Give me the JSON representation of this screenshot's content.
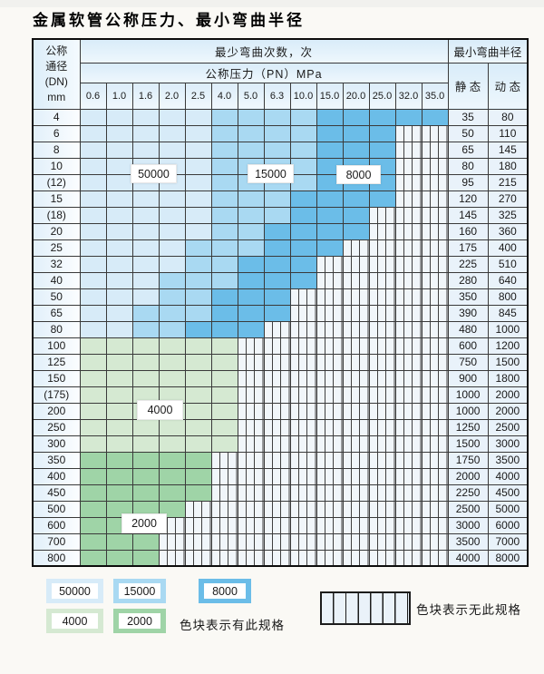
{
  "title": "金属软管公称压力、最小弯曲半径",
  "table": {
    "corner_header": {
      "line1": "公称",
      "line2": "通径",
      "line3": "(DN)",
      "line4": "mm"
    },
    "bend_cycles_header": "最少弯曲次数，次",
    "bend_radius_header": "最小弯曲半径",
    "pressure_header": "公称压力（PN）MPa",
    "pressure_columns": [
      "0.6",
      "1.0",
      "1.6",
      "2.0",
      "2.5",
      "4.0",
      "5.0",
      "6.3",
      "10.0",
      "15.0",
      "20.0",
      "25.0",
      "32.0",
      "35.0"
    ],
    "static_header": "静 态",
    "dynamic_header": "动 态",
    "cell_codes": {
      "A": "50000",
      "B": "15000",
      "C": "8000",
      "G": "4000",
      "H": "2000",
      "X": "no-spec-hatched"
    },
    "rows": [
      {
        "dn": "4",
        "cells": "AAAAABBBBCCCCC",
        "static": "35",
        "dynamic": "80"
      },
      {
        "dn": "6",
        "cells": "AAAAABBBBCCCXX",
        "static": "50",
        "dynamic": "110"
      },
      {
        "dn": "8",
        "cells": "AAAAABBBBCCCXX",
        "static": "65",
        "dynamic": "145"
      },
      {
        "dn": "10",
        "cells": "AAAAABBBBCCCXX",
        "static": "80",
        "dynamic": "180"
      },
      {
        "dn": "(12)",
        "cells": "AAAAABBBBCCCXX",
        "static": "95",
        "dynamic": "215"
      },
      {
        "dn": "15",
        "cells": "AAAAABBBCCCCXX",
        "static": "120",
        "dynamic": "270"
      },
      {
        "dn": "(18)",
        "cells": "AAAAABBBCCCXXX",
        "static": "145",
        "dynamic": "325"
      },
      {
        "dn": "20",
        "cells": "AAAAABBCCCCXXX",
        "static": "160",
        "dynamic": "360"
      },
      {
        "dn": "25",
        "cells": "AAAABBBCCCXXXX",
        "static": "175",
        "dynamic": "400"
      },
      {
        "dn": "32",
        "cells": "AAAABBCCCXXXXX",
        "static": "225",
        "dynamic": "510"
      },
      {
        "dn": "40",
        "cells": "AAABBBCCCXXXXX",
        "static": "280",
        "dynamic": "640"
      },
      {
        "dn": "50",
        "cells": "AAABBCCCXXXXXX",
        "static": "350",
        "dynamic": "800"
      },
      {
        "dn": "65",
        "cells": "AABBBCCCXXXXXX",
        "static": "390",
        "dynamic": "845"
      },
      {
        "dn": "80",
        "cells": "AABBCCCXXXXXXX",
        "static": "480",
        "dynamic": "1000"
      },
      {
        "dn": "100",
        "cells": "GGGGGGXXXXXXXX",
        "static": "600",
        "dynamic": "1200"
      },
      {
        "dn": "125",
        "cells": "GGGGGGXXXXXXXX",
        "static": "750",
        "dynamic": "1500"
      },
      {
        "dn": "150",
        "cells": "GGGGGGXXXXXXXX",
        "static": "900",
        "dynamic": "1800"
      },
      {
        "dn": "(175)",
        "cells": "GGGGGGXXXXXXXX",
        "static": "1000",
        "dynamic": "2000"
      },
      {
        "dn": "200",
        "cells": "GGGGGGXXXXXXXX",
        "static": "1000",
        "dynamic": "2000"
      },
      {
        "dn": "250",
        "cells": "GGGGGGXXXXXXXX",
        "static": "1250",
        "dynamic": "2500"
      },
      {
        "dn": "300",
        "cells": "GGGGGGXXXXXXXX",
        "static": "1500",
        "dynamic": "3000"
      },
      {
        "dn": "350",
        "cells": "HHHHHXXXXXXXXX",
        "static": "1750",
        "dynamic": "3500"
      },
      {
        "dn": "400",
        "cells": "HHHHHXXXXXXXXX",
        "static": "2000",
        "dynamic": "4000"
      },
      {
        "dn": "450",
        "cells": "HHHHHXXXXXXXXX",
        "static": "2250",
        "dynamic": "4500"
      },
      {
        "dn": "500",
        "cells": "HHHHXXXXXXXXXX",
        "static": "2500",
        "dynamic": "5000"
      },
      {
        "dn": "600",
        "cells": "HHHXXXXXXXXXXX",
        "static": "3000",
        "dynamic": "6000"
      },
      {
        "dn": "700",
        "cells": "HHHXXXXXXXXXXX",
        "static": "3500",
        "dynamic": "7000"
      },
      {
        "dn": "800",
        "cells": "HHHXXXXXXXXXXX",
        "static": "4000",
        "dynamic": "8000"
      }
    ]
  },
  "overlay_labels": {
    "blue_light": "50000",
    "blue_mid": "15000",
    "blue_dark": "8000",
    "green_light": "4000",
    "green_mid": "2000"
  },
  "legend": {
    "swatches": [
      {
        "label": "50000",
        "color": "#d7ebf8"
      },
      {
        "label": "15000",
        "color": "#a9d9f2"
      },
      {
        "label": "8000",
        "color": "#6bbde8"
      },
      {
        "label": "4000",
        "color": "#d5e9d2"
      },
      {
        "label": "2000",
        "color": "#9fd4a7"
      }
    ],
    "has_spec_note": "色块表示有此规格",
    "no_spec_note": "色块表示无此规格"
  },
  "colors": {
    "cycles_50000": "#d7ebf8",
    "cycles_15000": "#a9d9f2",
    "cycles_8000": "#6bbde8",
    "cycles_4000": "#d5e9d2",
    "cycles_2000": "#9fd4a7",
    "hatch_bg": "#f1f6fa",
    "grid_line": "#3a3a3a"
  }
}
